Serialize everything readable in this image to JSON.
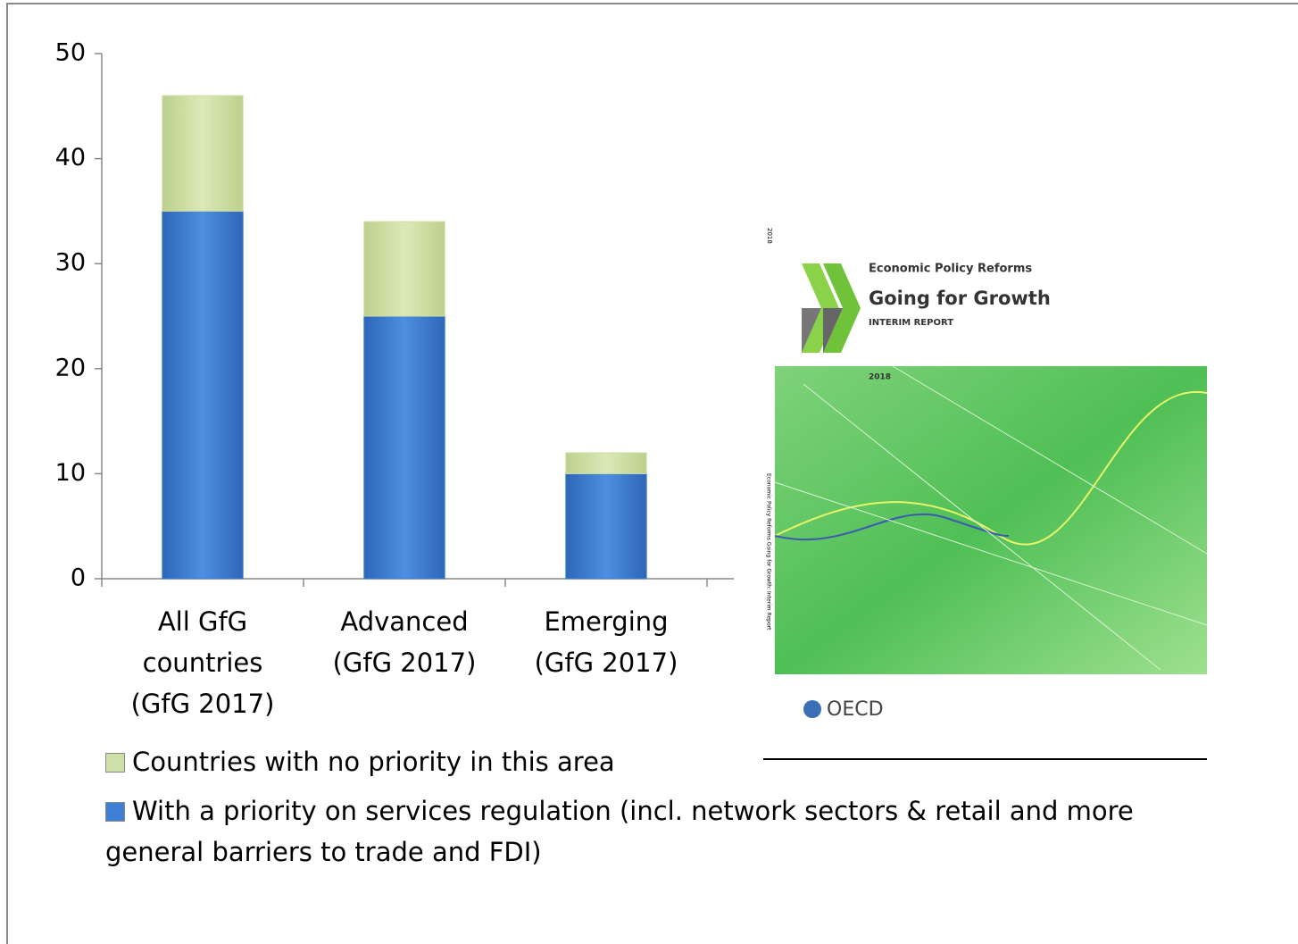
{
  "chart_data": {
    "type": "stacked_bar",
    "categories": [
      "All GfG countries (GfG 2017)",
      "Advanced (GfG 2017)",
      "Emerging (GfG 2017)"
    ],
    "series": [
      {
        "name": "With a priority on services regulation (incl. network sectors & retail and more general barriers to trade and FDI)",
        "color": "#3f7fd6",
        "values": [
          35,
          25,
          10
        ]
      },
      {
        "name": "Countries with no priority in this area",
        "color": "#cfe0a6",
        "values": [
          11,
          9,
          2
        ]
      }
    ],
    "ylim": [
      0,
      50
    ],
    "yticks": [
      0,
      10,
      20,
      30,
      40,
      50
    ],
    "grid": false
  },
  "cover": {
    "year_spine": "2018",
    "series_title": "Economic Policy Reforms",
    "title": "Going for Growth",
    "subtitle": "INTERIM REPORT",
    "year": "2018",
    "spine": "Economic Policy Reforms  Going for Growth: Interim Report",
    "publisher": "OECD"
  }
}
